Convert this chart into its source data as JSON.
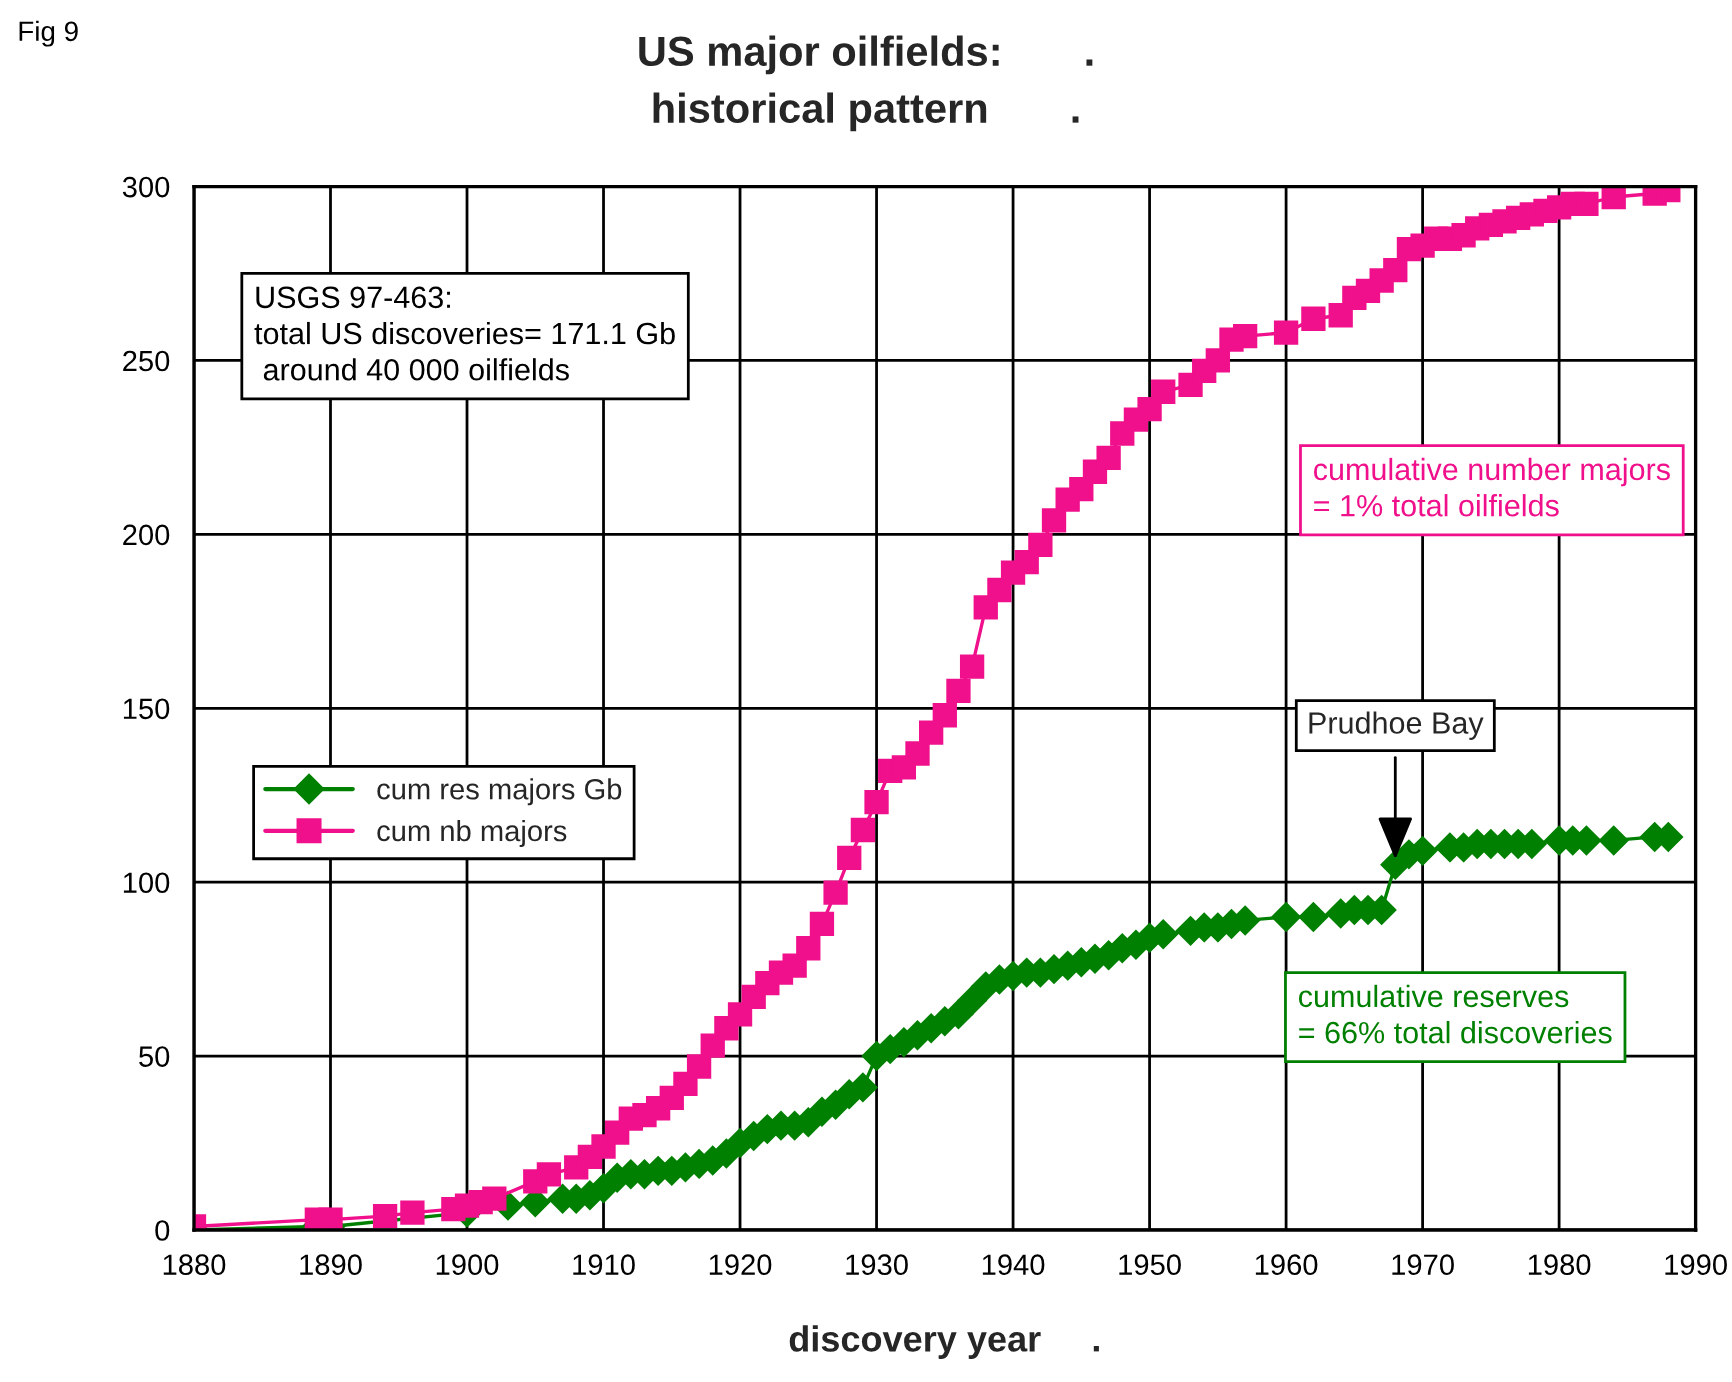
{
  "chart_data": {
    "type": "line",
    "title": "US major oilfields:       .\nhistorical pattern       .",
    "xlabel": "discovery year     .",
    "xlim": [
      1880,
      1990
    ],
    "xticks": [
      1880,
      1890,
      1900,
      1910,
      1920,
      1930,
      1940,
      1950,
      1960,
      1970,
      1980,
      1990
    ],
    "ylim": [
      0,
      300
    ],
    "yticks": [
      0,
      50,
      100,
      150,
      200,
      250,
      300
    ],
    "grid": true,
    "legend": "center left",
    "line_style": "solid",
    "series": [
      {
        "name": "cum res majors Gb",
        "color": "#008000",
        "marker": "diamond",
        "x": [
          1880,
          1889,
          1890,
          1900,
          1903,
          1905,
          1907,
          1908,
          1909,
          1910,
          1911,
          1912,
          1913,
          1914,
          1915,
          1916,
          1917,
          1918,
          1919,
          1920,
          1921,
          1922,
          1923,
          1924,
          1925,
          1926,
          1927,
          1928,
          1929,
          1930,
          1931,
          1932,
          1933,
          1934,
          1935,
          1936,
          1937,
          1938,
          1939,
          1940,
          1941,
          1942,
          1943,
          1944,
          1945,
          1946,
          1947,
          1948,
          1949,
          1950,
          1951,
          1953,
          1954,
          1955,
          1956,
          1957,
          1960,
          1962,
          1964,
          1965,
          1966,
          1967,
          1968,
          1969,
          1970,
          1972,
          1973,
          1974,
          1975,
          1976,
          1977,
          1978,
          1980,
          1981,
          1982,
          1984,
          1987,
          1988
        ],
        "values": [
          0,
          1,
          1,
          5,
          7,
          8,
          9,
          9,
          10,
          12,
          15,
          16,
          16,
          17,
          17,
          18,
          19,
          20,
          22,
          25,
          27,
          29,
          30,
          30,
          31,
          34,
          36,
          39,
          41,
          50,
          52,
          54,
          56,
          58,
          60,
          62,
          66,
          70,
          72,
          73,
          74,
          74,
          75,
          76,
          77,
          78,
          79,
          81,
          82,
          84,
          85,
          86,
          87,
          87,
          88,
          89,
          90,
          90,
          91,
          92,
          92,
          92,
          105,
          108,
          109,
          110,
          110,
          111,
          111,
          111,
          111,
          111,
          112,
          112,
          112,
          112,
          113,
          113
        ]
      },
      {
        "name": "cum nb majors",
        "color": "#f0108c",
        "marker": "square",
        "x": [
          1880,
          1889,
          1890,
          1894,
          1896,
          1899,
          1900,
          1901,
          1902,
          1905,
          1906,
          1908,
          1909,
          1910,
          1911,
          1912,
          1913,
          1914,
          1915,
          1916,
          1917,
          1918,
          1919,
          1920,
          1921,
          1922,
          1923,
          1924,
          1925,
          1926,
          1927,
          1928,
          1929,
          1930,
          1931,
          1932,
          1933,
          1934,
          1935,
          1936,
          1937,
          1938,
          1939,
          1940,
          1941,
          1942,
          1943,
          1944,
          1945,
          1946,
          1947,
          1948,
          1949,
          1950,
          1951,
          1953,
          1954,
          1955,
          1956,
          1957,
          1960,
          1962,
          1964,
          1965,
          1966,
          1967,
          1968,
          1969,
          1970,
          1971,
          1972,
          1973,
          1974,
          1975,
          1976,
          1977,
          1978,
          1979,
          1980,
          1981,
          1982,
          1984,
          1987,
          1988
        ],
        "values": [
          1,
          3,
          3,
          4,
          5,
          6,
          7,
          8,
          9,
          14,
          16,
          18,
          21,
          24,
          28,
          32,
          33,
          35,
          38,
          42,
          47,
          53,
          58,
          62,
          67,
          71,
          74,
          76,
          81,
          88,
          97,
          107,
          115,
          123,
          132,
          133,
          137,
          143,
          148,
          155,
          162,
          179,
          184,
          189,
          192,
          197,
          204,
          210,
          213,
          218,
          222,
          229,
          233,
          236,
          241,
          243,
          247,
          250,
          256,
          257,
          258,
          262,
          263,
          268,
          270,
          273,
          276,
          282,
          283,
          285,
          285,
          286,
          288,
          289,
          290,
          291,
          292,
          293,
          294,
          295,
          295,
          297,
          298,
          299
        ]
      }
    ],
    "annotations": [
      "Fig 9",
      "USGS 97-463:\ntotal US discoveries= 171.1 Gb\n around 40 000 oilfields",
      "cumulative number majors\n= 1% total oilfields",
      "cumulative reserves\n= 66% total discoveries",
      {
        "text": "Prudhoe Bay",
        "x": 1968,
        "y": 105
      }
    ]
  }
}
